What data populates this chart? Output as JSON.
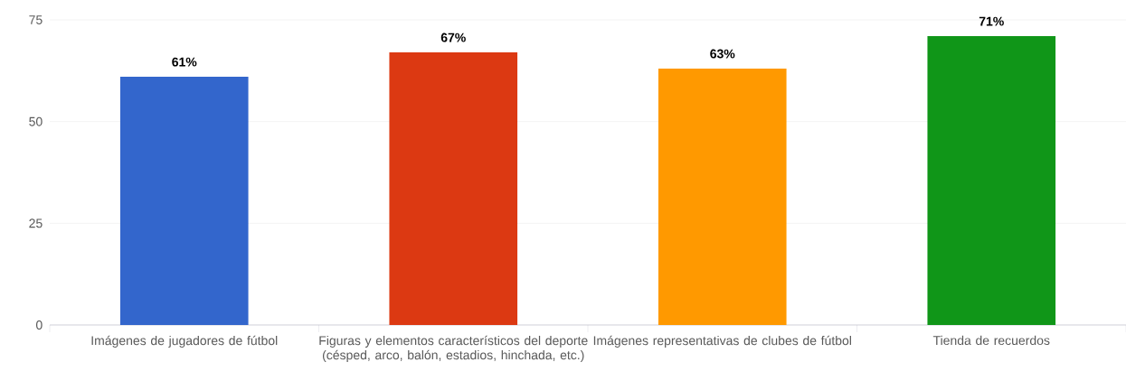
{
  "chart_data": {
    "type": "bar",
    "categories": [
      "Imágenes de jugadores de fútbol",
      "Figuras y elementos característicos del deporte (césped, arco, balón, estadios, hinchada, etc.)",
      "Imágenes representativas de clubes de fútbol",
      "Tienda de recuerdos"
    ],
    "values": [
      61,
      67,
      63,
      71
    ],
    "value_labels": [
      "61%",
      "67%",
      "63%",
      "71%"
    ],
    "colors": [
      "#3366cc",
      "#dc3912",
      "#ff9900",
      "#109618"
    ],
    "ylim": [
      0,
      75
    ],
    "yticks": [
      0,
      25,
      50,
      75
    ],
    "grid": "y"
  }
}
